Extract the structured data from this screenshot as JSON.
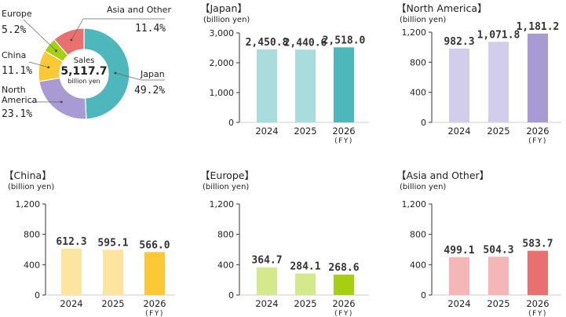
{
  "pie": {
    "center": {
      "title": "Sales",
      "value": "5,117.7",
      "unit": "billion yen"
    },
    "segments": [
      {
        "label": "Japan",
        "pct_label": "49.2%",
        "value": 49.2,
        "color": "#4db7bb"
      },
      {
        "label": "North America",
        "label_lines": [
          "North",
          "America"
        ],
        "pct_label": "23.1%",
        "value": 23.1,
        "color": "#a89bd4"
      },
      {
        "label": "China",
        "pct_label": "11.1%",
        "value": 11.1,
        "color": "#fcc936"
      },
      {
        "label": "Europe",
        "pct_label": "5.2%",
        "value": 5.2,
        "color": "#a6cf12"
      },
      {
        "label": "Asia and Other",
        "pct_label": "11.4%",
        "value": 11.4,
        "color": "#e8716f"
      }
    ]
  },
  "chart_data": [
    {
      "type": "bar",
      "title": "【Japan】",
      "ylabel": "(billion yen)",
      "categories": [
        "2024",
        "2025",
        "2026"
      ],
      "last_note": "(FY)",
      "values": [
        2450.8,
        2440.6,
        2518.0
      ],
      "value_labels": [
        "2,450.8",
        "2,440.6",
        "2,518.0"
      ],
      "ylim": [
        0,
        3000
      ],
      "yticks": [
        0,
        1000,
        2000,
        3000
      ],
      "ytick_labels": [
        "0",
        "1,000",
        "2,000",
        "3,000"
      ],
      "colors": [
        "#a8dcdd",
        "#a8dcdd",
        "#4db7bb"
      ]
    },
    {
      "type": "bar",
      "title": "【North America】",
      "ylabel": "(billion yen)",
      "categories": [
        "2024",
        "2025",
        "2026"
      ],
      "last_note": "(FY)",
      "values": [
        982.3,
        1071.8,
        1181.2
      ],
      "value_labels": [
        "982.3",
        "1,071.8",
        "1,181.2"
      ],
      "ylim": [
        0,
        1200
      ],
      "yticks": [
        0,
        400,
        800,
        1200
      ],
      "ytick_labels": [
        "0",
        "400",
        "800",
        "1,200"
      ],
      "colors": [
        "#d3cdec",
        "#d3cdec",
        "#a89bd4"
      ]
    },
    {
      "type": "bar",
      "title": "【China】",
      "ylabel": "(billion yen)",
      "categories": [
        "2024",
        "2025",
        "2026"
      ],
      "last_note": "(FY)",
      "values": [
        612.3,
        595.1,
        566.0
      ],
      "value_labels": [
        "612.3",
        "595.1",
        "566.0"
      ],
      "ylim": [
        0,
        1200
      ],
      "yticks": [
        0,
        400,
        800,
        1200
      ],
      "ytick_labels": [
        "0",
        "400",
        "800",
        "1,200"
      ],
      "colors": [
        "#fde59f",
        "#fde59f",
        "#fcc936"
      ]
    },
    {
      "type": "bar",
      "title": "【Europe】",
      "ylabel": "(billion yen)",
      "categories": [
        "2024",
        "2025",
        "2026"
      ],
      "last_note": "(FY)",
      "values": [
        364.7,
        284.1,
        268.6
      ],
      "value_labels": [
        "364.7",
        "284.1",
        "268.6"
      ],
      "ylim": [
        0,
        1200
      ],
      "yticks": [
        0,
        400,
        800,
        1200
      ],
      "ytick_labels": [
        "0",
        "400",
        "800",
        "1,200"
      ],
      "colors": [
        "#d4e98c",
        "#d4e98c",
        "#a6cf12"
      ]
    },
    {
      "type": "bar",
      "title": "【Asia and Other】",
      "ylabel": "(billion yen)",
      "categories": [
        "2024",
        "2025",
        "2026"
      ],
      "last_note": "(FY)",
      "values": [
        499.1,
        504.3,
        583.7
      ],
      "value_labels": [
        "499.1",
        "504.3",
        "583.7"
      ],
      "ylim": [
        0,
        1200
      ],
      "yticks": [
        0,
        400,
        800,
        1200
      ],
      "ytick_labels": [
        "0",
        "400",
        "800",
        "1,200"
      ],
      "colors": [
        "#f4b6b6",
        "#f4b6b6",
        "#e8716f"
      ]
    }
  ]
}
